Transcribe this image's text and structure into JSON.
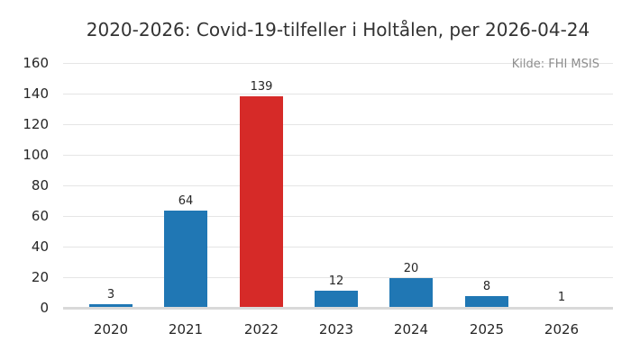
{
  "chart_data": {
    "type": "bar",
    "title": "2020-2026: Covid-19-tilfeller i Holtålen, per 2026-04-24",
    "source_note": "Kilde: FHI MSIS",
    "categories": [
      "2020",
      "2021",
      "2022",
      "2023",
      "2024",
      "2025",
      "2026"
    ],
    "values": [
      3,
      64,
      139,
      12,
      20,
      8,
      1
    ],
    "bar_colors": [
      "#2077b4",
      "#2077b4",
      "#d62a28",
      "#2077b4",
      "#2077b4",
      "#2077b4",
      "#2077b4"
    ],
    "highlighted_category": "2022",
    "value_labels_shown": true,
    "xlabel": "",
    "ylabel": "",
    "ylim": [
      0,
      160
    ],
    "yticks": [
      0,
      20,
      40,
      60,
      80,
      100,
      120,
      140,
      160
    ],
    "grid": "horizontal",
    "legend": "none",
    "colors": {
      "bar_default": "#2077b4",
      "bar_highlight": "#d62a28",
      "gridline": "#e5e5e5",
      "axis_line": "#d9d9d9",
      "tick_text": "#262626",
      "title_text": "#333333",
      "source_text": "#8e8e8e",
      "background": "#ffffff"
    }
  }
}
